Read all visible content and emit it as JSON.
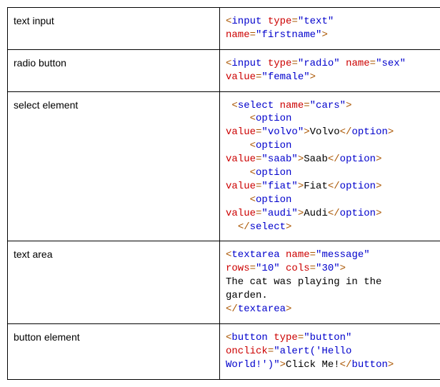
{
  "colors": {
    "tag": "#0000cc",
    "attr": "#cc0000",
    "value": "#0000cc",
    "bracket": "#aa5500",
    "text": "#000000",
    "border": "#000000",
    "background": "#ffffff"
  },
  "fonts": {
    "label_family": "Verdana, Geneva, sans-serif",
    "code_family": "Courier New, Courier, monospace",
    "size_pt": 14
  },
  "rows": [
    {
      "label": "text input",
      "code": [
        {
          "c": "br",
          "t": "<"
        },
        {
          "c": "t",
          "t": "input "
        },
        {
          "c": "a",
          "t": "type"
        },
        {
          "c": "br",
          "t": "="
        },
        {
          "c": "v",
          "t": "\"text\""
        },
        {
          "c": "tx",
          "t": "\n"
        },
        {
          "c": "a",
          "t": "name"
        },
        {
          "c": "br",
          "t": "="
        },
        {
          "c": "v",
          "t": "\"firstname\""
        },
        {
          "c": "br",
          "t": ">"
        }
      ]
    },
    {
      "label": "radio button",
      "code": [
        {
          "c": "br",
          "t": "<"
        },
        {
          "c": "t",
          "t": "input "
        },
        {
          "c": "a",
          "t": "type"
        },
        {
          "c": "br",
          "t": "="
        },
        {
          "c": "v",
          "t": "\"radio\""
        },
        {
          "c": "tx",
          "t": " "
        },
        {
          "c": "a",
          "t": "name"
        },
        {
          "c": "br",
          "t": "="
        },
        {
          "c": "v",
          "t": "\"sex\""
        },
        {
          "c": "tx",
          "t": "\n"
        },
        {
          "c": "a",
          "t": "value"
        },
        {
          "c": "br",
          "t": "="
        },
        {
          "c": "v",
          "t": "\"female\""
        },
        {
          "c": "br",
          "t": ">"
        }
      ]
    },
    {
      "label": "select element",
      "code": [
        {
          "c": "tx",
          "t": " "
        },
        {
          "c": "br",
          "t": "<"
        },
        {
          "c": "t",
          "t": "select "
        },
        {
          "c": "a",
          "t": "name"
        },
        {
          "c": "br",
          "t": "="
        },
        {
          "c": "v",
          "t": "\"cars\""
        },
        {
          "c": "br",
          "t": ">"
        },
        {
          "c": "tx",
          "t": "\n"
        },
        {
          "c": "tx",
          "t": "    "
        },
        {
          "c": "br",
          "t": "<"
        },
        {
          "c": "t",
          "t": "option"
        },
        {
          "c": "tx",
          "t": "\n"
        },
        {
          "c": "a",
          "t": "value"
        },
        {
          "c": "br",
          "t": "="
        },
        {
          "c": "v",
          "t": "\"volvo\""
        },
        {
          "c": "br",
          "t": ">"
        },
        {
          "c": "tx",
          "t": "Volvo"
        },
        {
          "c": "br",
          "t": "</"
        },
        {
          "c": "t",
          "t": "option"
        },
        {
          "c": "br",
          "t": ">"
        },
        {
          "c": "tx",
          "t": "\n"
        },
        {
          "c": "tx",
          "t": "    "
        },
        {
          "c": "br",
          "t": "<"
        },
        {
          "c": "t",
          "t": "option"
        },
        {
          "c": "tx",
          "t": "\n"
        },
        {
          "c": "a",
          "t": "value"
        },
        {
          "c": "br",
          "t": "="
        },
        {
          "c": "v",
          "t": "\"saab\""
        },
        {
          "c": "br",
          "t": ">"
        },
        {
          "c": "tx",
          "t": "Saab"
        },
        {
          "c": "br",
          "t": "</"
        },
        {
          "c": "t",
          "t": "option"
        },
        {
          "c": "br",
          "t": ">"
        },
        {
          "c": "tx",
          "t": "\n"
        },
        {
          "c": "tx",
          "t": "    "
        },
        {
          "c": "br",
          "t": "<"
        },
        {
          "c": "t",
          "t": "option"
        },
        {
          "c": "tx",
          "t": "\n"
        },
        {
          "c": "a",
          "t": "value"
        },
        {
          "c": "br",
          "t": "="
        },
        {
          "c": "v",
          "t": "\"fiat\""
        },
        {
          "c": "br",
          "t": ">"
        },
        {
          "c": "tx",
          "t": "Fiat"
        },
        {
          "c": "br",
          "t": "</"
        },
        {
          "c": "t",
          "t": "option"
        },
        {
          "c": "br",
          "t": ">"
        },
        {
          "c": "tx",
          "t": "\n"
        },
        {
          "c": "tx",
          "t": "    "
        },
        {
          "c": "br",
          "t": "<"
        },
        {
          "c": "t",
          "t": "option"
        },
        {
          "c": "tx",
          "t": "\n"
        },
        {
          "c": "a",
          "t": "value"
        },
        {
          "c": "br",
          "t": "="
        },
        {
          "c": "v",
          "t": "\"audi\""
        },
        {
          "c": "br",
          "t": ">"
        },
        {
          "c": "tx",
          "t": "Audi"
        },
        {
          "c": "br",
          "t": "</"
        },
        {
          "c": "t",
          "t": "option"
        },
        {
          "c": "br",
          "t": ">"
        },
        {
          "c": "tx",
          "t": "\n"
        },
        {
          "c": "tx",
          "t": "  "
        },
        {
          "c": "br",
          "t": "</"
        },
        {
          "c": "t",
          "t": "select"
        },
        {
          "c": "br",
          "t": ">"
        }
      ]
    },
    {
      "label": "text area",
      "code": [
        {
          "c": "br",
          "t": "<"
        },
        {
          "c": "t",
          "t": "textarea "
        },
        {
          "c": "a",
          "t": "name"
        },
        {
          "c": "br",
          "t": "="
        },
        {
          "c": "v",
          "t": "\"message\""
        },
        {
          "c": "tx",
          "t": "\n"
        },
        {
          "c": "a",
          "t": "rows"
        },
        {
          "c": "br",
          "t": "="
        },
        {
          "c": "v",
          "t": "\"10\""
        },
        {
          "c": "tx",
          "t": " "
        },
        {
          "c": "a",
          "t": "cols"
        },
        {
          "c": "br",
          "t": "="
        },
        {
          "c": "v",
          "t": "\"30\""
        },
        {
          "c": "br",
          "t": ">"
        },
        {
          "c": "tx",
          "t": "\n"
        },
        {
          "c": "tx",
          "t": "The cat was playing in the\ngarden.\n"
        },
        {
          "c": "br",
          "t": "</"
        },
        {
          "c": "t",
          "t": "textarea"
        },
        {
          "c": "br",
          "t": ">"
        }
      ]
    },
    {
      "label": "button element",
      "code": [
        {
          "c": "br",
          "t": "<"
        },
        {
          "c": "t",
          "t": "button "
        },
        {
          "c": "a",
          "t": "type"
        },
        {
          "c": "br",
          "t": "="
        },
        {
          "c": "v",
          "t": "\"button\""
        },
        {
          "c": "tx",
          "t": "\n"
        },
        {
          "c": "a",
          "t": "onclick"
        },
        {
          "c": "br",
          "t": "="
        },
        {
          "c": "v",
          "t": "\"alert('Hello\nWorld!')\""
        },
        {
          "c": "br",
          "t": ">"
        },
        {
          "c": "tx",
          "t": "Click Me!"
        },
        {
          "c": "br",
          "t": "</"
        },
        {
          "c": "t",
          "t": "button"
        },
        {
          "c": "br",
          "t": ">"
        }
      ]
    }
  ]
}
